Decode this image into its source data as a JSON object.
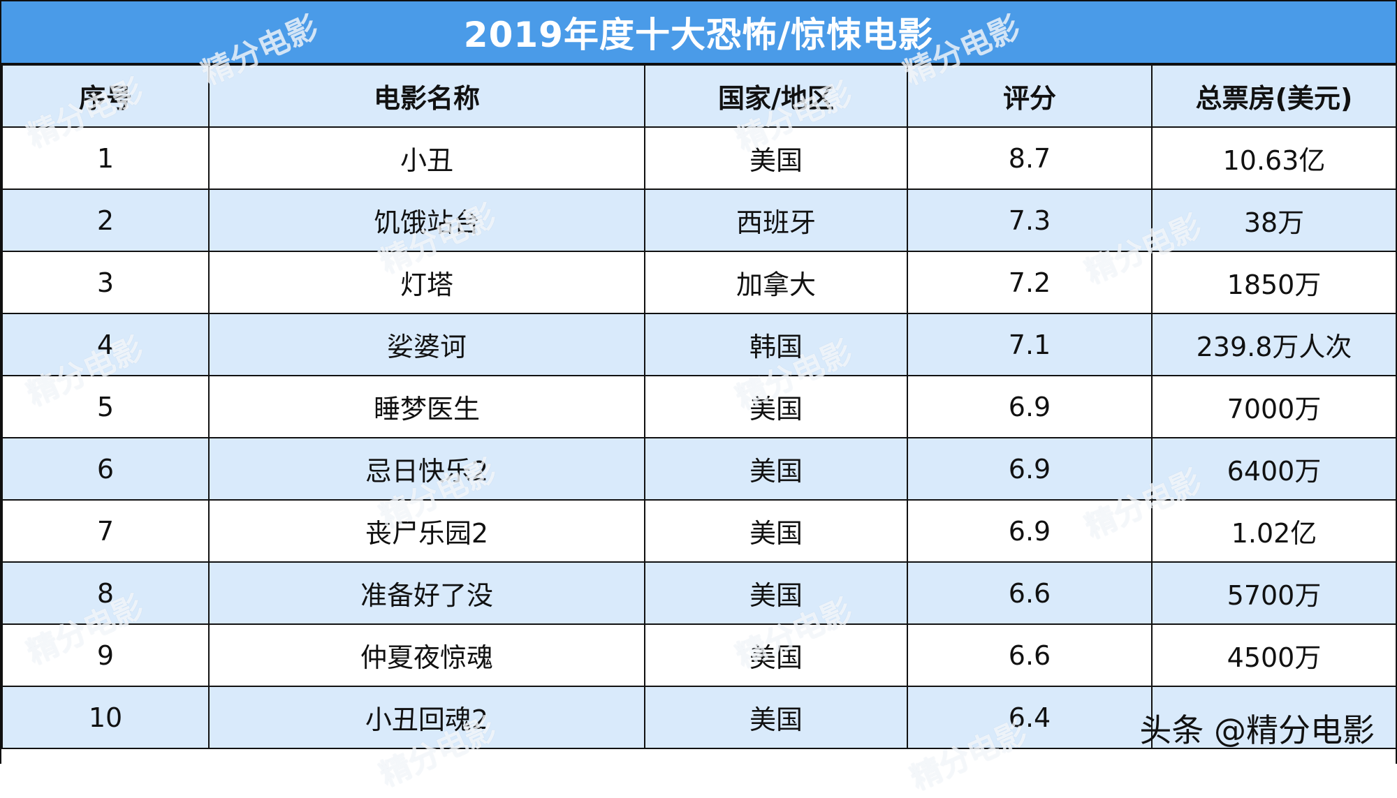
{
  "title": "2019年度十大恐怖/惊悚电影",
  "headers": {
    "rank": "序号",
    "name": "电影名称",
    "country": "国家/地区",
    "score": "评分",
    "box": "总票房(美元)"
  },
  "rows": [
    {
      "rank": "1",
      "name": "小丑",
      "country": "美国",
      "score": "8.7",
      "box": "10.63亿"
    },
    {
      "rank": "2",
      "name": "饥饿站台",
      "country": "西班牙",
      "score": "7.3",
      "box": "38万"
    },
    {
      "rank": "3",
      "name": "灯塔",
      "country": "加拿大",
      "score": "7.2",
      "box": "1850万"
    },
    {
      "rank": "4",
      "name": "娑婆诃",
      "country": "韩国",
      "score": "7.1",
      "box": "239.8万人次"
    },
    {
      "rank": "5",
      "name": "睡梦医生",
      "country": "美国",
      "score": "6.9",
      "box": "7000万"
    },
    {
      "rank": "6",
      "name": "忌日快乐2",
      "country": "美国",
      "score": "6.9",
      "box": "6400万"
    },
    {
      "rank": "7",
      "name": "丧尸乐园2",
      "country": "美国",
      "score": "6.9",
      "box": "1.02亿"
    },
    {
      "rank": "8",
      "name": "准备好了没",
      "country": "美国",
      "score": "6.6",
      "box": "5700万"
    },
    {
      "rank": "9",
      "name": "仲夏夜惊魂",
      "country": "美国",
      "score": "6.6",
      "box": "4500万"
    },
    {
      "rank": "10",
      "name": "小丑回魂2",
      "country": "美国",
      "score": "6.4",
      "box": ""
    }
  ],
  "watermark_text": "精分电影",
  "signature": "头条 @精分电影",
  "colors": {
    "title_bg": "#4a9be8",
    "alt_row_bg": "#d9eafb",
    "border": "#111111"
  }
}
